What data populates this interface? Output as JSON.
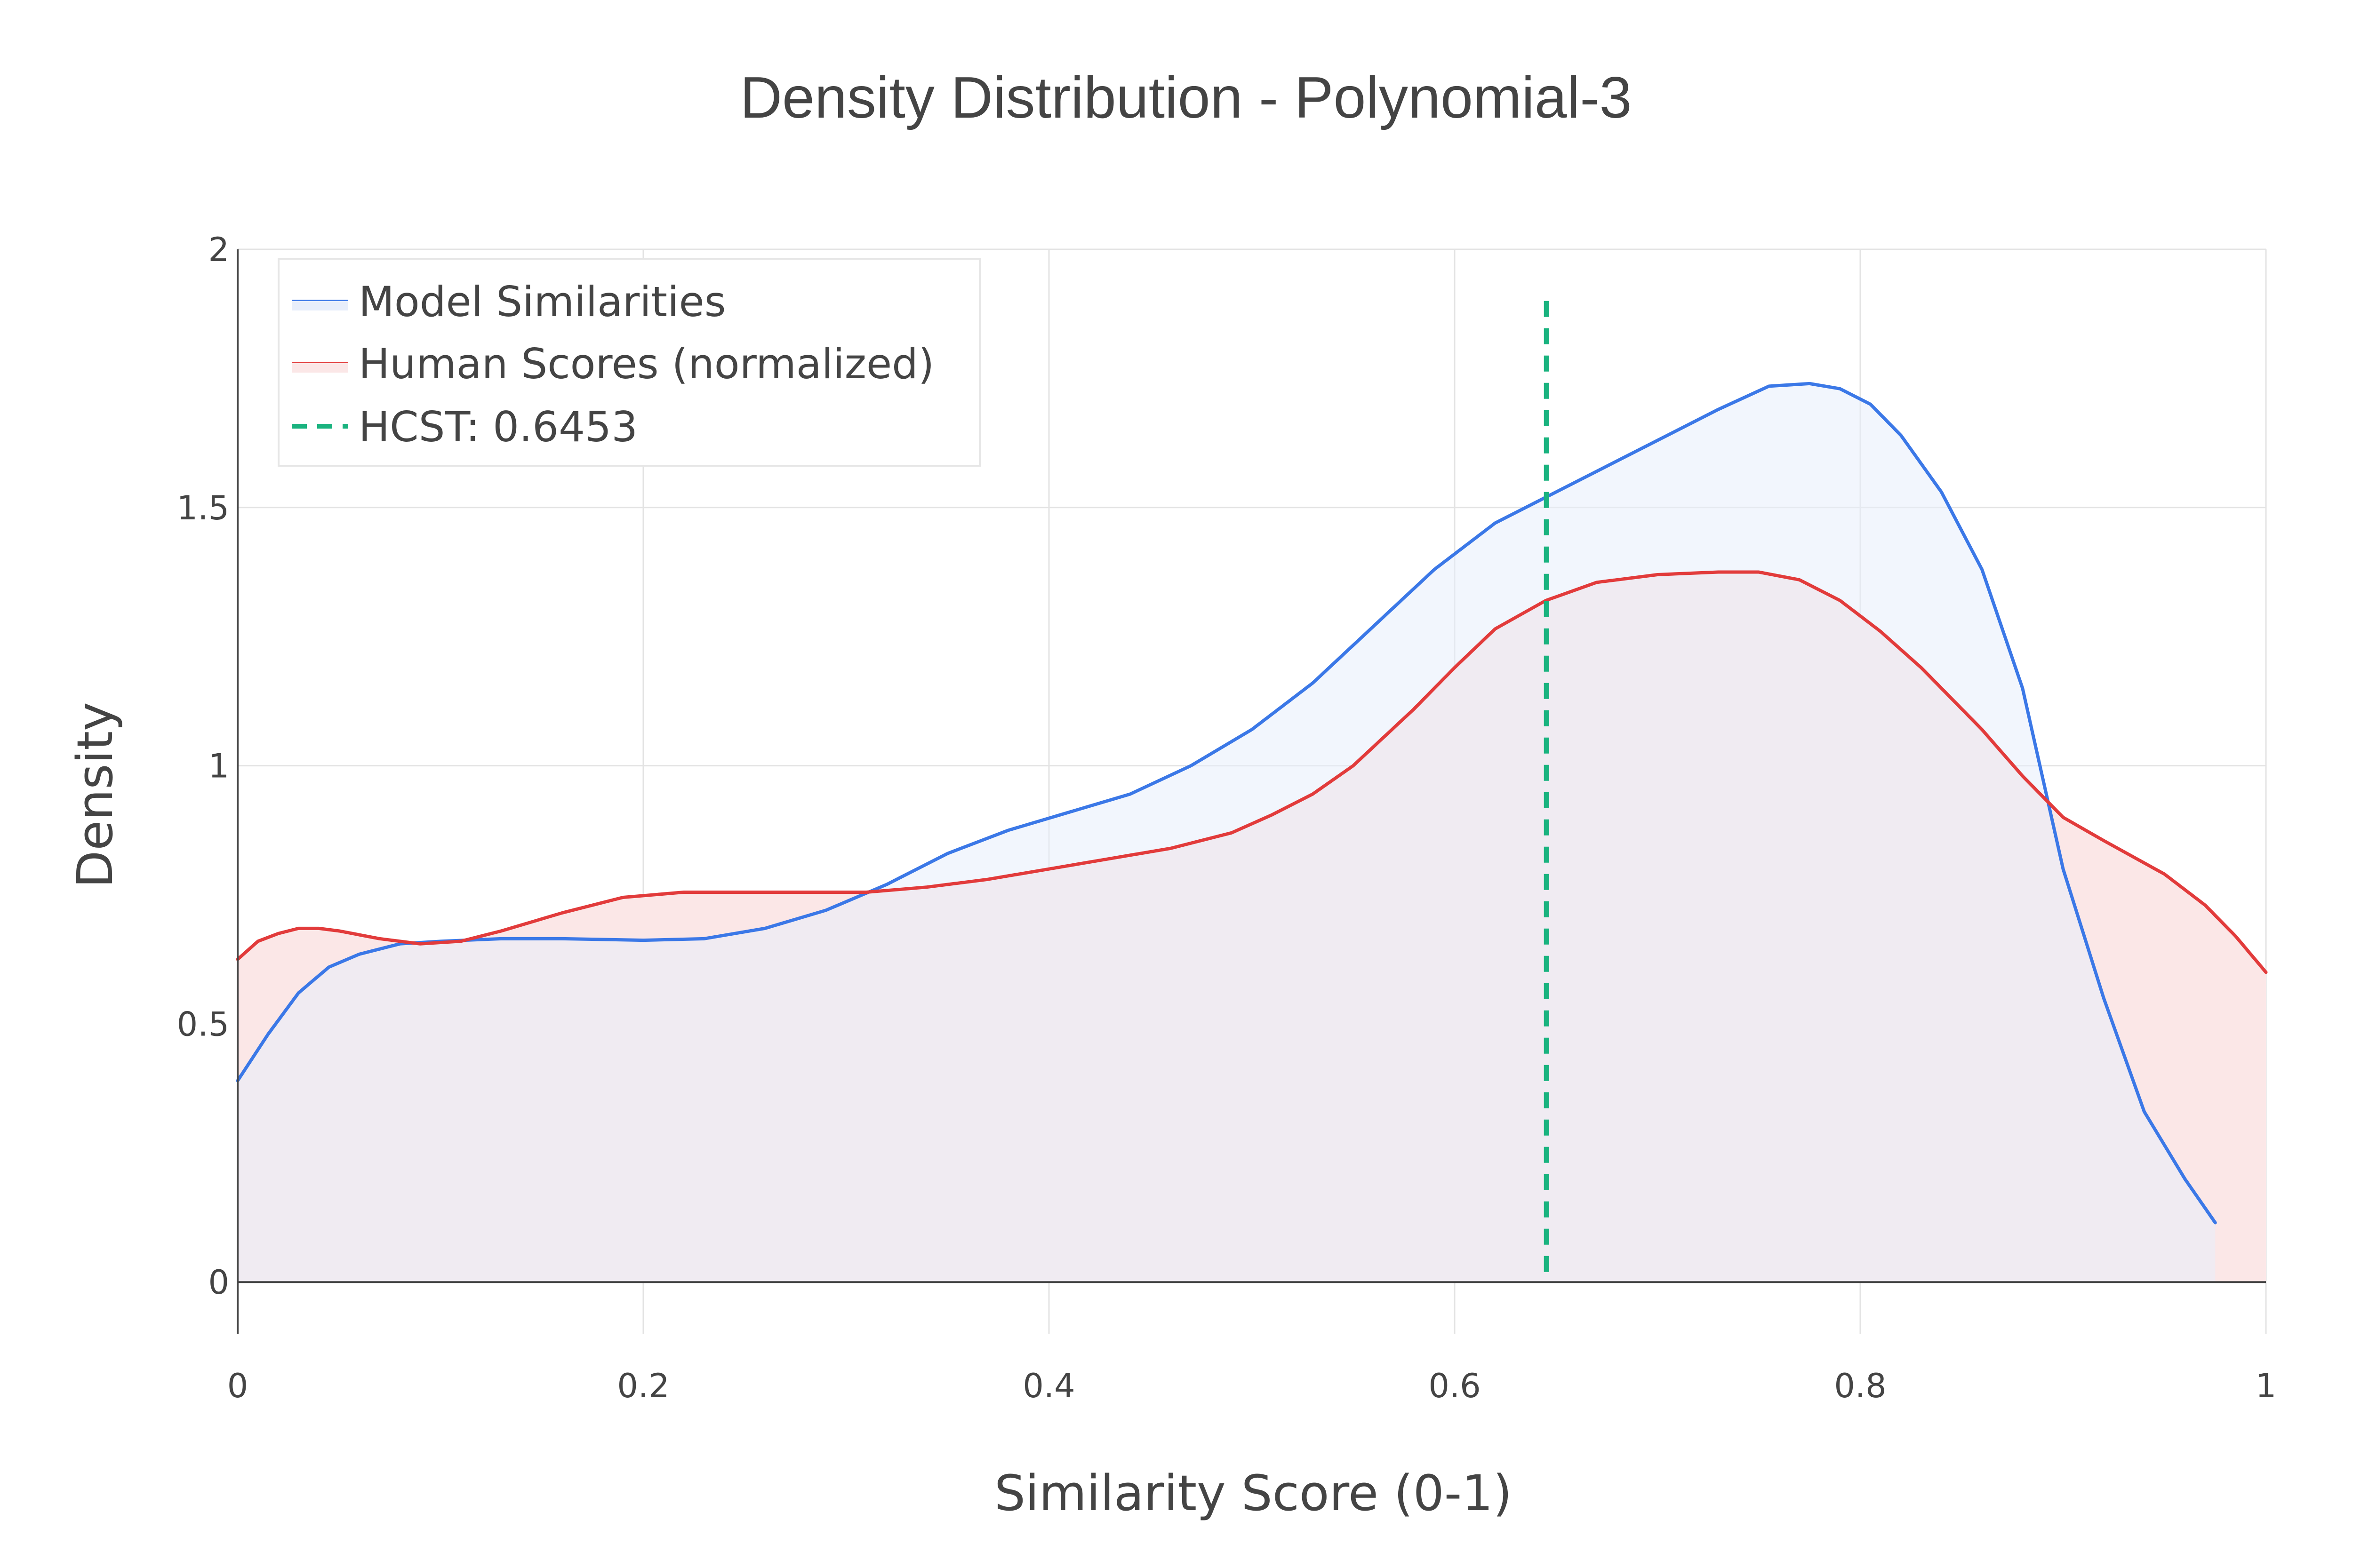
{
  "chart_data": {
    "type": "area",
    "title": "Density Distribution - Polynomial-3",
    "xlabel": "Similarity Score (0-1)",
    "ylabel": "Density",
    "xlim": [
      0,
      1
    ],
    "ylim": [
      -0.1,
      2
    ],
    "x_ticks": [
      0,
      0.2,
      0.4,
      0.6,
      0.8,
      1
    ],
    "x_tick_labels": [
      "0",
      "0.2",
      "0.4",
      "0.6",
      "0.8",
      "1"
    ],
    "y_ticks": [
      0,
      0.5,
      1,
      1.5,
      2
    ],
    "y_tick_labels": [
      "0",
      "0.5",
      "1",
      "1.5",
      "2"
    ],
    "grid": true,
    "legend_position": "top-left",
    "series": [
      {
        "name": "Model Similarities",
        "color": "#3b78e7",
        "fill": "#e8eefb",
        "x": [
          0,
          0.015,
          0.03,
          0.045,
          0.06,
          0.08,
          0.1,
          0.13,
          0.16,
          0.2,
          0.23,
          0.26,
          0.29,
          0.32,
          0.35,
          0.38,
          0.41,
          0.44,
          0.47,
          0.5,
          0.53,
          0.56,
          0.59,
          0.62,
          0.645,
          0.67,
          0.7,
          0.73,
          0.755,
          0.775,
          0.79,
          0.805,
          0.82,
          0.84,
          0.86,
          0.88,
          0.9,
          0.92,
          0.94,
          0.96,
          0.975
        ],
        "y": [
          0.39,
          0.48,
          0.56,
          0.61,
          0.635,
          0.655,
          0.66,
          0.665,
          0.665,
          0.662,
          0.665,
          0.685,
          0.72,
          0.77,
          0.83,
          0.875,
          0.91,
          0.945,
          1.0,
          1.07,
          1.16,
          1.27,
          1.38,
          1.47,
          1.52,
          1.57,
          1.63,
          1.69,
          1.735,
          1.74,
          1.73,
          1.7,
          1.64,
          1.53,
          1.38,
          1.15,
          0.8,
          0.55,
          0.33,
          0.2,
          0.115
        ]
      },
      {
        "name": "Human Scores (normalized)",
        "color": "#e23b3b",
        "fill": "#fbe7e7",
        "x": [
          0,
          0.01,
          0.02,
          0.03,
          0.04,
          0.05,
          0.07,
          0.09,
          0.11,
          0.13,
          0.16,
          0.19,
          0.22,
          0.25,
          0.28,
          0.31,
          0.34,
          0.37,
          0.4,
          0.43,
          0.46,
          0.49,
          0.51,
          0.53,
          0.55,
          0.58,
          0.6,
          0.62,
          0.645,
          0.67,
          0.7,
          0.73,
          0.75,
          0.77,
          0.79,
          0.81,
          0.83,
          0.86,
          0.88,
          0.9,
          0.92,
          0.95,
          0.97,
          0.985,
          1
        ],
        "y": [
          0.625,
          0.66,
          0.675,
          0.685,
          0.685,
          0.68,
          0.665,
          0.655,
          0.66,
          0.68,
          0.715,
          0.745,
          0.755,
          0.755,
          0.755,
          0.755,
          0.765,
          0.78,
          0.8,
          0.82,
          0.84,
          0.87,
          0.905,
          0.945,
          1.0,
          1.11,
          1.19,
          1.265,
          1.32,
          1.355,
          1.37,
          1.375,
          1.375,
          1.36,
          1.32,
          1.26,
          1.19,
          1.07,
          0.98,
          0.9,
          0.855,
          0.79,
          0.73,
          0.67,
          0.6
        ]
      }
    ],
    "threshold": {
      "name": "HCST: 0.6453",
      "value": 0.6453,
      "y_top": 1.9,
      "color": "#1ab37f",
      "style": "dashed"
    }
  }
}
